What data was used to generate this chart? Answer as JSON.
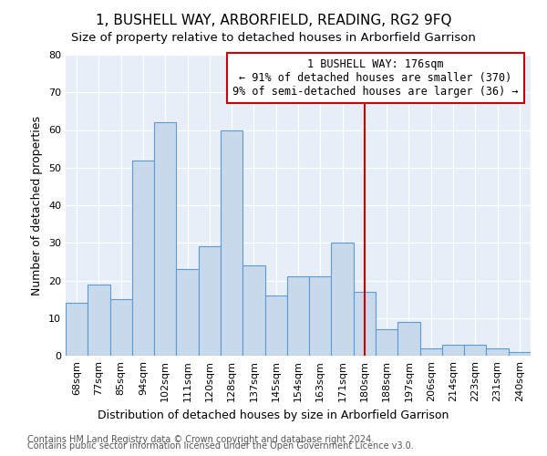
{
  "title": "1, BUSHELL WAY, ARBORFIELD, READING, RG2 9FQ",
  "subtitle": "Size of property relative to detached houses in Arborfield Garrison",
  "xlabel": "Distribution of detached houses by size in Arborfield Garrison",
  "ylabel": "Number of detached properties",
  "categories": [
    "68sqm",
    "77sqm",
    "85sqm",
    "94sqm",
    "102sqm",
    "111sqm",
    "120sqm",
    "128sqm",
    "137sqm",
    "145sqm",
    "154sqm",
    "163sqm",
    "171sqm",
    "180sqm",
    "188sqm",
    "197sqm",
    "206sqm",
    "214sqm",
    "223sqm",
    "231sqm",
    "240sqm"
  ],
  "values": [
    14,
    19,
    15,
    52,
    62,
    23,
    29,
    60,
    24,
    16,
    21,
    21,
    30,
    17,
    7,
    9,
    2,
    3,
    3,
    2,
    1
  ],
  "bar_color": "#c8d9eb",
  "bar_edge_color": "#5b9bd5",
  "annotation_text": "1 BUSHELL WAY: 176sqm\n← 91% of detached houses are smaller (370)\n9% of semi-detached houses are larger (36) →",
  "vline_index": 13.0,
  "vline_color": "#cc0000",
  "annotation_box_edge": "#cc0000",
  "ylim": [
    0,
    80
  ],
  "yticks": [
    0,
    10,
    20,
    30,
    40,
    50,
    60,
    70,
    80
  ],
  "footer1": "Contains HM Land Registry data © Crown copyright and database right 2024.",
  "footer2": "Contains public sector information licensed under the Open Government Licence v3.0.",
  "background_color": "#e8eef7",
  "title_fontsize": 11,
  "subtitle_fontsize": 9.5,
  "xlabel_fontsize": 9,
  "ylabel_fontsize": 9,
  "tick_fontsize": 8,
  "footer_fontsize": 7,
  "annotation_fontsize": 8.5
}
